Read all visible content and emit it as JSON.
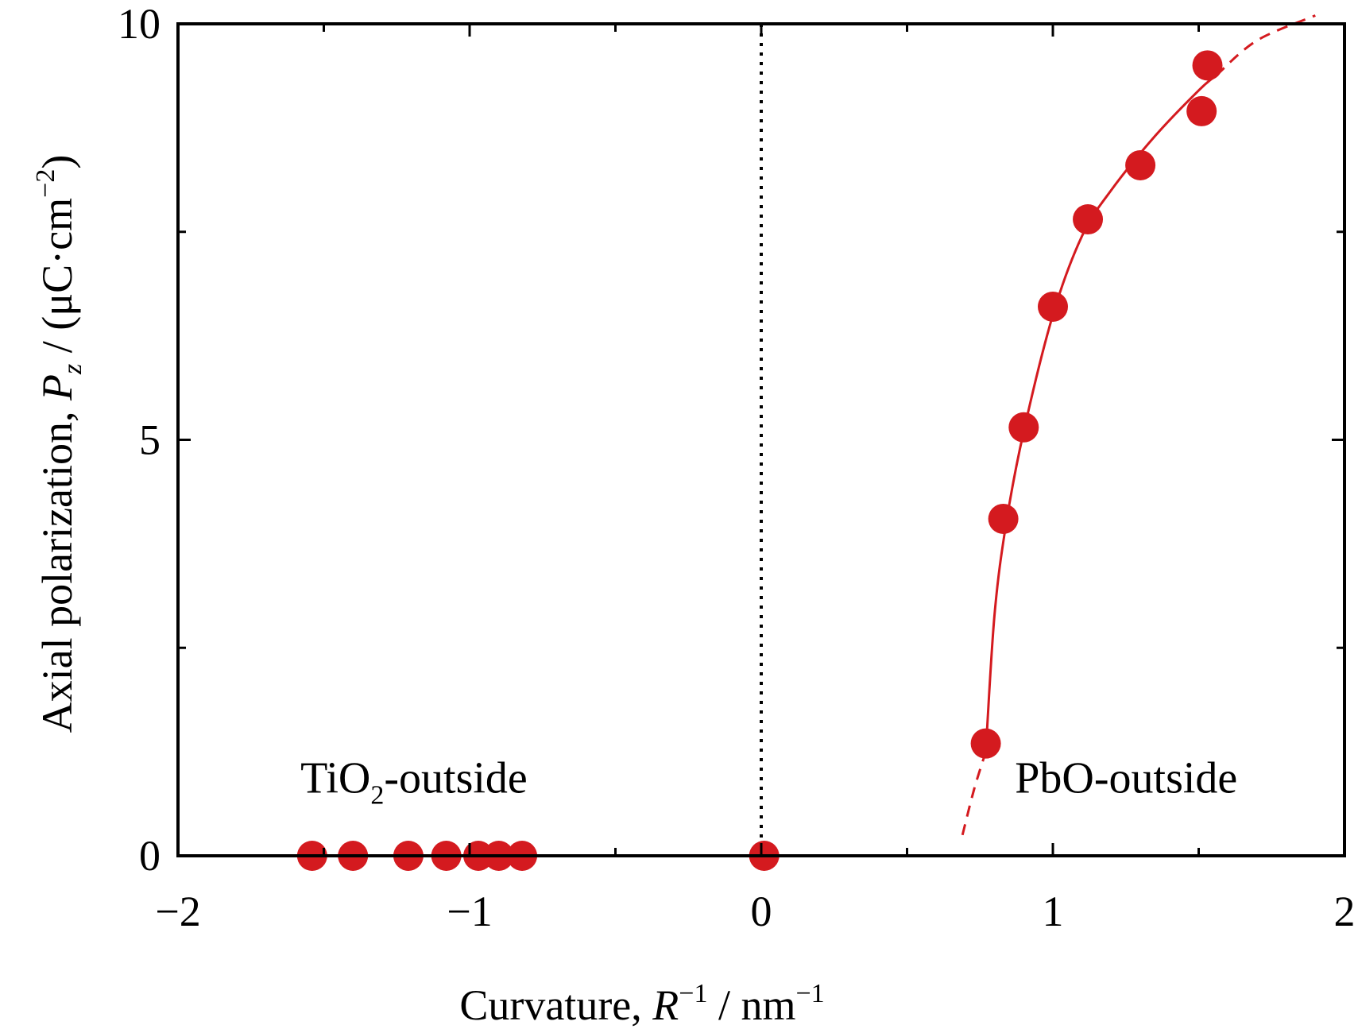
{
  "chart_data": {
    "type": "scatter",
    "xlabel": {
      "prefix": "Curvature, ",
      "var": "R",
      "var_sup": "−1",
      "unit": " / nm",
      "unit_sup": "−1"
    },
    "ylabel": {
      "prefix": "Axial polarization, ",
      "var": "P",
      "var_sub": "z",
      "unit": " / (μC·cm",
      "unit_sup": "−2",
      "unit_close": ")"
    },
    "xlim": [
      -2,
      2
    ],
    "ylim": [
      0,
      10
    ],
    "x_ticks": [
      -2,
      -1.5,
      -1,
      -0.5,
      0,
      0.5,
      1,
      1.5,
      2
    ],
    "x_tick_labels": [
      {
        "value": -2,
        "label": "−2"
      },
      {
        "value": -1,
        "label": "−1"
      },
      {
        "value": 0,
        "label": "0"
      },
      {
        "value": 1,
        "label": "1"
      },
      {
        "value": 2,
        "label": "2"
      }
    ],
    "y_ticks": [
      0,
      2.5,
      5,
      7.5,
      10
    ],
    "y_tick_labels": [
      {
        "value": 0,
        "label": "0"
      },
      {
        "value": 5,
        "label": "5"
      },
      {
        "value": 10,
        "label": "10"
      }
    ],
    "reference_line": {
      "x": 0,
      "style": "dotted",
      "color": "#000000"
    },
    "points": [
      {
        "x": -1.54,
        "y": 0
      },
      {
        "x": -1.4,
        "y": 0
      },
      {
        "x": -1.21,
        "y": 0
      },
      {
        "x": -1.08,
        "y": 0
      },
      {
        "x": -0.97,
        "y": 0
      },
      {
        "x": -0.9,
        "y": 0
      },
      {
        "x": -0.82,
        "y": 0
      },
      {
        "x": 0.01,
        "y": 0
      },
      {
        "x": 0.77,
        "y": 1.35
      },
      {
        "x": 0.83,
        "y": 4.05
      },
      {
        "x": 0.9,
        "y": 5.15
      },
      {
        "x": 1.0,
        "y": 6.6
      },
      {
        "x": 1.12,
        "y": 7.65
      },
      {
        "x": 1.3,
        "y": 8.3
      },
      {
        "x": 1.51,
        "y": 8.95
      },
      {
        "x": 1.53,
        "y": 9.5
      }
    ],
    "fit_solid": [
      [
        -1.6,
        0
      ],
      [
        0.68,
        0
      ]
    ],
    "fit_curve_solid": [
      [
        0.77,
        1.25
      ],
      [
        0.8,
        2.9
      ],
      [
        0.84,
        4.0
      ],
      [
        0.9,
        5.1
      ],
      [
        1.0,
        6.5
      ],
      [
        1.1,
        7.45
      ],
      [
        1.2,
        8.0
      ],
      [
        1.35,
        8.65
      ],
      [
        1.5,
        9.2
      ],
      [
        1.56,
        9.38
      ]
    ],
    "fit_curve_dashed_high": [
      [
        1.56,
        9.38
      ],
      [
        1.7,
        9.8
      ],
      [
        1.9,
        10.1
      ]
    ],
    "fit_curve_dashed_low": [
      [
        0.69,
        0.25
      ],
      [
        0.73,
        0.8
      ],
      [
        0.77,
        1.25
      ]
    ],
    "annotations": [
      {
        "text": "TiO",
        "sub": "2",
        "text_after": "-outside",
        "x": -1.58,
        "y": 0.95
      },
      {
        "text": "PbO-outside",
        "sub": "",
        "text_after": "",
        "x": 0.87,
        "y": 0.95
      }
    ],
    "colors": {
      "marker": "#d41a1f",
      "fit": "#d41a1f",
      "axis": "#000000"
    }
  }
}
